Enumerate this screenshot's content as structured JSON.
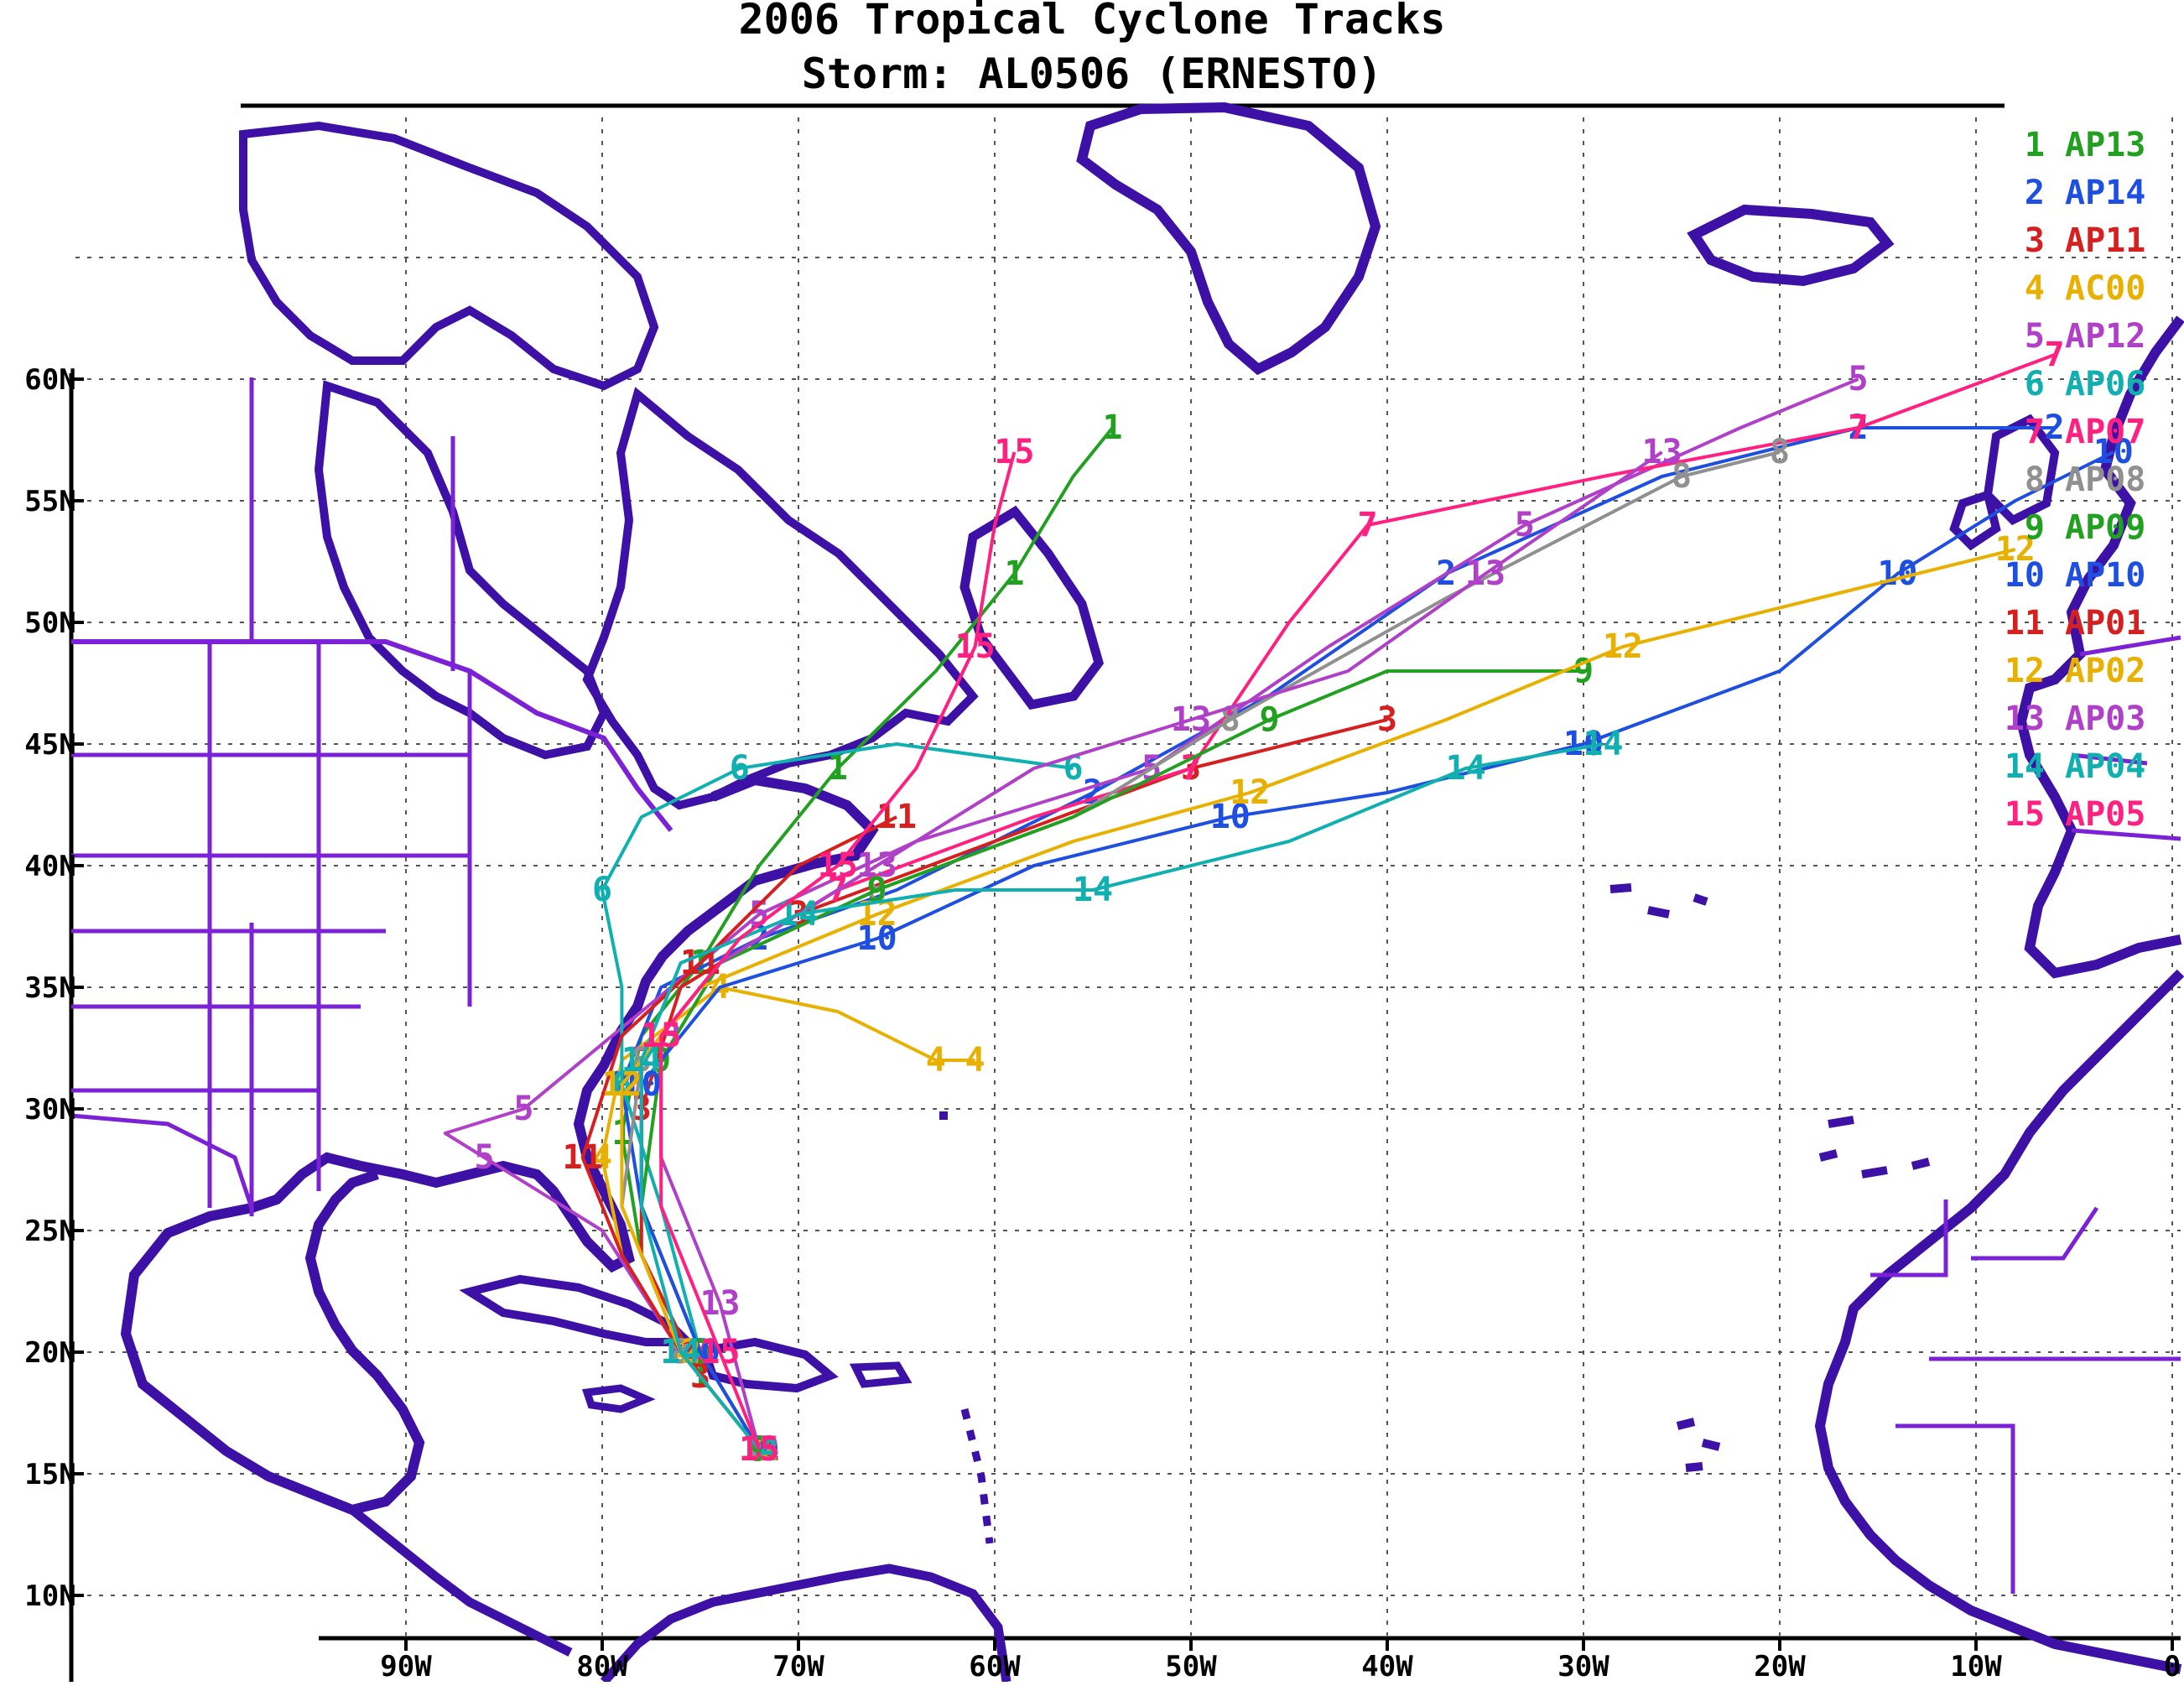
{
  "title": {
    "line1": "2006 Tropical Cyclone Tracks",
    "line2": "Storm: AL0506 (ERNESTO)"
  },
  "axes": {
    "lat_labels": [
      "60N",
      "55N",
      "50N",
      "45N",
      "40N",
      "35N",
      "30N",
      "25N",
      "20N",
      "15N",
      "10N"
    ],
    "lat_values": [
      60,
      55,
      50,
      45,
      40,
      35,
      30,
      25,
      20,
      15,
      10
    ],
    "lon_labels": [
      "90W",
      "80W",
      "70W",
      "60W",
      "50W",
      "40W",
      "30W",
      "20W",
      "10W",
      "0"
    ],
    "lon_values": [
      -90,
      -80,
      -70,
      -60,
      -50,
      -40,
      -30,
      -20,
      -10,
      0
    ]
  },
  "colors": {
    "coast": "#3d11a6",
    "border": "#7b22d6",
    "grid": "#555555"
  },
  "legend": [
    {
      "num": "1",
      "label": "AP13",
      "color": "#22a020"
    },
    {
      "num": "2",
      "label": "AP14",
      "color": "#1f4fe0"
    },
    {
      "num": "3",
      "label": "AP11",
      "color": "#d62020"
    },
    {
      "num": "4",
      "label": "AC00",
      "color": "#e8b000"
    },
    {
      "num": "5",
      "label": "AP12",
      "color": "#b040c8"
    },
    {
      "num": "6",
      "label": "AP06",
      "color": "#10b0b0"
    },
    {
      "num": "7",
      "label": "AP07",
      "color": "#ff2080"
    },
    {
      "num": "8",
      "label": "AP08",
      "color": "#909090"
    },
    {
      "num": "9",
      "label": "AP09",
      "color": "#22a020"
    },
    {
      "num": "10",
      "label": "AP10",
      "color": "#1f4fe0"
    },
    {
      "num": "11",
      "label": "AP01",
      "color": "#d62020"
    },
    {
      "num": "12",
      "label": "AP02",
      "color": "#e8b000"
    },
    {
      "num": "13",
      "label": "AP03",
      "color": "#b040c8"
    },
    {
      "num": "14",
      "label": "AP04",
      "color": "#10b0b0"
    },
    {
      "num": "15",
      "label": "AP05",
      "color": "#ff2080"
    }
  ],
  "tracks": [
    {
      "num": "1",
      "color": "#22a020",
      "pts": [
        [
          -72,
          16
        ],
        [
          -75,
          19
        ],
        [
          -78,
          24
        ],
        [
          -79,
          29
        ],
        [
          -78,
          33
        ],
        [
          -75,
          36
        ],
        [
          -72,
          40
        ],
        [
          -68,
          44
        ],
        [
          -63,
          48
        ],
        [
          -59,
          52
        ],
        [
          -56,
          56
        ],
        [
          -54,
          58
        ]
      ]
    },
    {
      "num": "2",
      "color": "#1f4fe0",
      "pts": [
        [
          -72,
          16
        ],
        [
          -75,
          20
        ],
        [
          -78,
          26
        ],
        [
          -79,
          31
        ],
        [
          -77,
          35
        ],
        [
          -72,
          37
        ],
        [
          -65,
          39
        ],
        [
          -55,
          43
        ],
        [
          -46,
          47
        ],
        [
          -37,
          52
        ],
        [
          -26,
          56
        ],
        [
          -16,
          58
        ],
        [
          -6,
          58
        ]
      ]
    },
    {
      "num": "3",
      "color": "#d62020",
      "pts": [
        [
          -72,
          16
        ],
        [
          -75,
          19
        ],
        [
          -78,
          24
        ],
        [
          -78,
          30
        ],
        [
          -76,
          35
        ],
        [
          -70,
          38
        ],
        [
          -60,
          41
        ],
        [
          -50,
          44
        ],
        [
          -40,
          46
        ]
      ]
    },
    {
      "num": "4",
      "color": "#e8b000",
      "pts": [
        [
          -72,
          16
        ],
        [
          -76,
          20
        ],
        [
          -79,
          24
        ],
        [
          -80,
          28
        ],
        [
          -79,
          32
        ],
        [
          -74,
          35
        ],
        [
          -68,
          34
        ],
        [
          -63,
          32
        ],
        [
          -61,
          32
        ]
      ]
    },
    {
      "num": "5",
      "color": "#b040c8",
      "pts": [
        [
          -72,
          16
        ],
        [
          -76,
          20
        ],
        [
          -80,
          25
        ],
        [
          -86,
          28
        ],
        [
          -88,
          29
        ],
        [
          -84,
          30
        ],
        [
          -78,
          34
        ],
        [
          -72,
          38
        ],
        [
          -64,
          41
        ],
        [
          -52,
          44
        ],
        [
          -43,
          49
        ],
        [
          -33,
          54
        ],
        [
          -22,
          58
        ],
        [
          -16,
          60
        ]
      ]
    },
    {
      "num": "6",
      "color": "#10b0b0",
      "pts": [
        [
          -72,
          16
        ],
        [
          -75,
          20
        ],
        [
          -77,
          26
        ],
        [
          -79,
          31
        ],
        [
          -79,
          35
        ],
        [
          -80,
          39
        ],
        [
          -78,
          42
        ],
        [
          -73,
          44
        ],
        [
          -65,
          45
        ],
        [
          -56,
          44
        ]
      ]
    },
    {
      "num": "7",
      "color": "#ff2080",
      "pts": [
        [
          -72,
          16
        ],
        [
          -75,
          20
        ],
        [
          -78,
          26
        ],
        [
          -78,
          32
        ],
        [
          -74,
          36
        ],
        [
          -68,
          39
        ],
        [
          -58,
          42
        ],
        [
          -50,
          44
        ],
        [
          -45,
          50
        ],
        [
          -41,
          54
        ],
        [
          -29,
          56
        ],
        [
          -16,
          58
        ],
        [
          -6,
          61
        ]
      ]
    },
    {
      "num": "8",
      "color": "#909090",
      "pts": [
        [
          -72,
          16
        ],
        [
          -76,
          20
        ],
        [
          -79,
          26
        ],
        [
          -78,
          32
        ],
        [
          -74,
          36
        ],
        [
          -66,
          39
        ],
        [
          -56,
          42
        ],
        [
          -48,
          46
        ],
        [
          -37,
          51
        ],
        [
          -25,
          56
        ],
        [
          -20,
          57
        ]
      ]
    },
    {
      "num": "9",
      "color": "#22a020",
      "pts": [
        [
          -72,
          16
        ],
        [
          -75,
          20
        ],
        [
          -78,
          26
        ],
        [
          -77,
          32
        ],
        [
          -74,
          36
        ],
        [
          -66,
          39
        ],
        [
          -56,
          42
        ],
        [
          -46,
          46
        ],
        [
          -40,
          48
        ],
        [
          -30,
          48
        ]
      ]
    },
    {
      "num": "10",
      "color": "#1f4fe0",
      "pts": [
        [
          -72,
          16
        ],
        [
          -75,
          20
        ],
        [
          -78,
          26
        ],
        [
          -78,
          31
        ],
        [
          -74,
          35
        ],
        [
          -66,
          37
        ],
        [
          -58,
          40
        ],
        [
          -48,
          42
        ],
        [
          -40,
          43
        ],
        [
          -30,
          45
        ],
        [
          -20,
          48
        ],
        [
          -14,
          52
        ],
        [
          -8,
          55
        ],
        [
          -3,
          57
        ]
      ]
    },
    {
      "num": "11",
      "color": "#d62020",
      "pts": [
        [
          -72,
          16
        ],
        [
          -76,
          20
        ],
        [
          -79,
          24
        ],
        [
          -81,
          28
        ],
        [
          -79,
          33
        ],
        [
          -75,
          36
        ],
        [
          -70,
          40
        ],
        [
          -65,
          42
        ]
      ]
    },
    {
      "num": "12",
      "color": "#e8b000",
      "pts": [
        [
          -72,
          16
        ],
        [
          -76,
          20
        ],
        [
          -79,
          26
        ],
        [
          -79,
          31
        ],
        [
          -75,
          35
        ],
        [
          -66,
          38
        ],
        [
          -56,
          41
        ],
        [
          -47,
          43
        ],
        [
          -37,
          46
        ],
        [
          -28,
          49
        ],
        [
          -18,
          51
        ],
        [
          -8,
          53
        ]
      ]
    },
    {
      "num": "13",
      "color": "#b040c8",
      "pts": [
        [
          -72,
          16
        ],
        [
          -74,
          22
        ],
        [
          -77,
          28
        ],
        [
          -77,
          33
        ],
        [
          -74,
          36
        ],
        [
          -66,
          40
        ],
        [
          -58,
          44
        ],
        [
          -50,
          46
        ],
        [
          -42,
          48
        ],
        [
          -35,
          52
        ],
        [
          -26,
          57
        ]
      ]
    },
    {
      "num": "14",
      "color": "#10b0b0",
      "pts": [
        [
          -72,
          16
        ],
        [
          -76,
          20
        ],
        [
          -78,
          26
        ],
        [
          -78,
          32
        ],
        [
          -76,
          36
        ],
        [
          -70,
          38
        ],
        [
          -62,
          39
        ],
        [
          -55,
          39
        ],
        [
          -45,
          41
        ],
        [
          -36,
          44
        ],
        [
          -29,
          45
        ]
      ]
    },
    {
      "num": "15",
      "color": "#ff2080",
      "pts": [
        [
          -72,
          16
        ],
        [
          -74,
          20
        ],
        [
          -77,
          26
        ],
        [
          -77,
          33
        ],
        [
          -73,
          37
        ],
        [
          -68,
          40
        ],
        [
          -64,
          44
        ],
        [
          -61,
          49
        ],
        [
          -60,
          54
        ],
        [
          -59,
          57
        ]
      ]
    }
  ]
}
